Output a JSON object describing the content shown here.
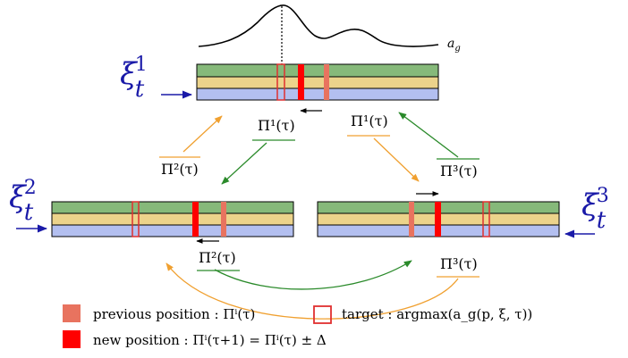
{
  "curve_label": "a_g",
  "agents": [
    {
      "id": 1,
      "xi_label": "ξ",
      "sup": "1",
      "sub": "t",
      "pi_label": "Π¹(τ)"
    },
    {
      "id": 2,
      "xi_label": "ξ",
      "sup": "2",
      "sub": "t",
      "pi_label": "Π²(τ)"
    },
    {
      "id": 3,
      "xi_label": "ξ",
      "sup": "3",
      "sub": "t",
      "pi_label": "Π³(τ)"
    }
  ],
  "pi_labels": {
    "p1_left": "Π¹(τ)",
    "p1_right": "Π¹(τ)",
    "p2_top": "Π²(τ)",
    "p3_top": "Π³(τ)",
    "p2_bottom": "Π²(τ)",
    "p3_bottom": "Π³(τ)"
  },
  "colors": {
    "green": "#86b97a",
    "yellow": "#ecd38b",
    "blue": "#b3bff0",
    "prev": "#e8735f",
    "new": "#ff0000",
    "target": "#e03030",
    "orange_arrow": "#f0a030",
    "green_arrow": "#2a8a2a",
    "xi": "#1a1aa8"
  },
  "legend": {
    "previous": "previous position : Πⁱ(τ)",
    "target": "target : argmax(a_g(p, ξ, τ))",
    "new": "new position : Πⁱ(τ+1) = Πⁱ(τ) ± Δ"
  }
}
